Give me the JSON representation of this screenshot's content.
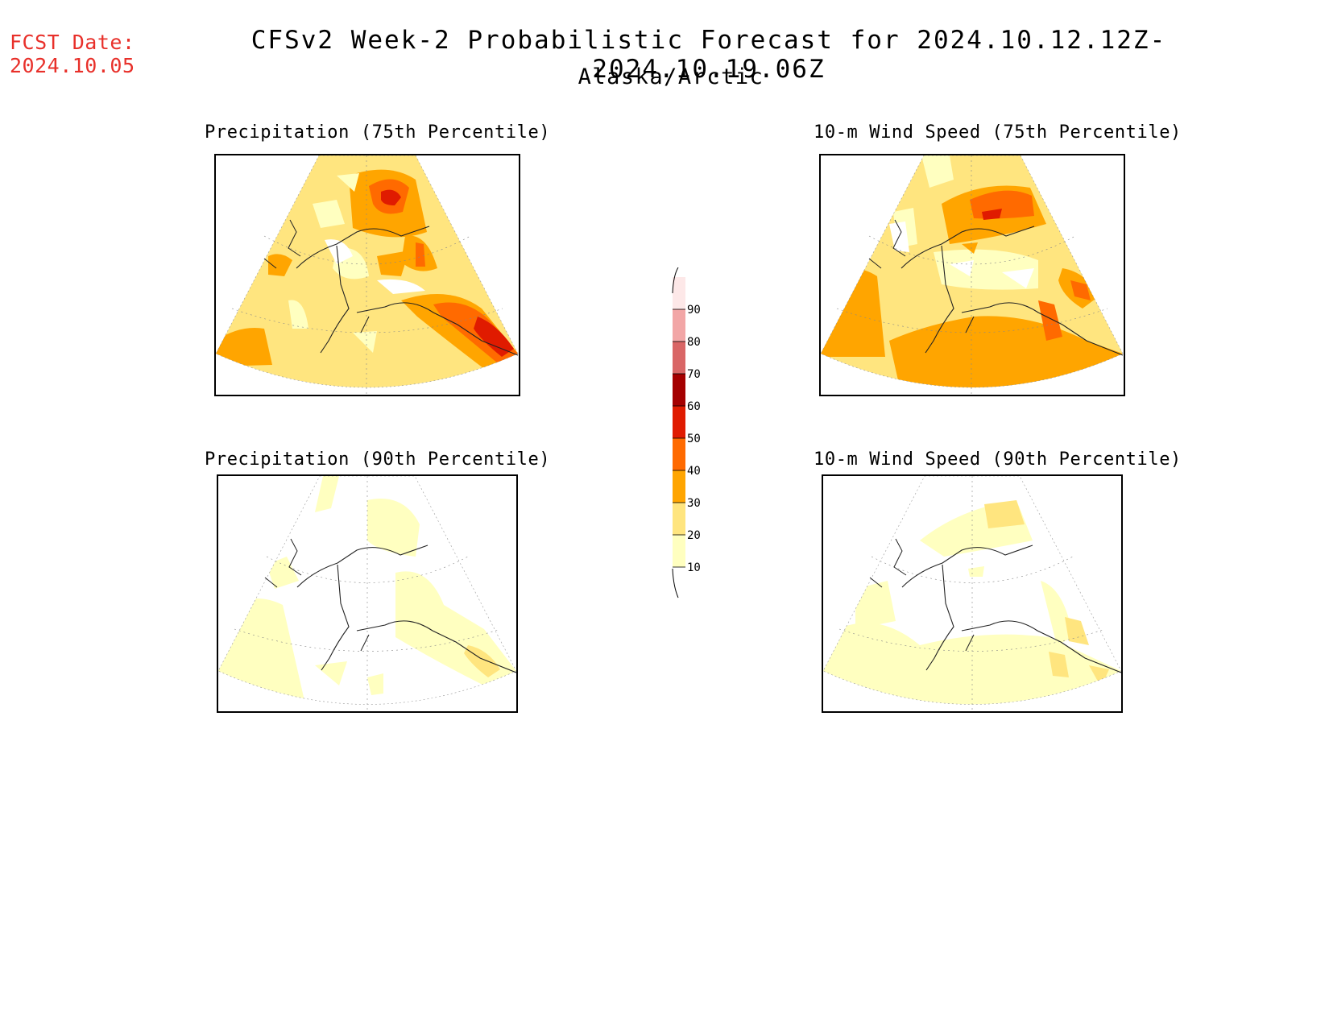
{
  "header": {
    "fcst_label": "FCST Date:",
    "fcst_date": "2024.10.05",
    "title": "CFSv2 Week-2 Probabilistic Forecast for 2024.10.12.12Z-2024.10.19.06Z",
    "subtitle": "Alaska/Arctic"
  },
  "panels": [
    {
      "id": "precip-75",
      "title": "Precipitation (75th Percentile)"
    },
    {
      "id": "wind-75",
      "title": "10-m Wind Speed (75th Percentile)"
    },
    {
      "id": "precip-90",
      "title": "Precipitation (90th Percentile)"
    },
    {
      "id": "wind-90",
      "title": "10-m Wind Speed (90th Percentile)"
    }
  ],
  "colorbar": {
    "levels": [
      "10",
      "20",
      "30",
      "40",
      "50",
      "60",
      "70",
      "80",
      "90"
    ],
    "colors": [
      "#ffffc0",
      "#ffe57f",
      "#ffa500",
      "#ff6a00",
      "#e01b00",
      "#a50000",
      "#d96666",
      "#f2a6a6",
      "#fde8e8"
    ]
  },
  "chart_data": {
    "type": "heatmap",
    "title": "CFSv2 Week-2 Probabilistic Forecast for 2024.10.12.12Z-2024.10.19.06Z",
    "subtitle": "Alaska/Arctic",
    "legend": "center",
    "color_scale": {
      "levels": [
        10,
        20,
        30,
        40,
        50,
        60,
        70,
        80,
        90
      ],
      "colors": [
        "#ffffc0",
        "#ffe57f",
        "#ffa500",
        "#ff6a00",
        "#e01b00",
        "#a50000",
        "#d96666",
        "#f2a6a6",
        "#fde8e8"
      ]
    },
    "maps": [
      {
        "title": "Precipitation (75th Percentile)",
        "dominant_range": [
          20,
          30
        ],
        "max_range": [
          50,
          60
        ]
      },
      {
        "title": "10-m Wind Speed (75th Percentile)",
        "dominant_range": [
          20,
          40
        ],
        "max_range": [
          40,
          50
        ]
      },
      {
        "title": "Precipitation (90th Percentile)",
        "dominant_range": [
          10,
          20
        ],
        "max_range": [
          20,
          30
        ]
      },
      {
        "title": "10-m Wind Speed (90th Percentile)",
        "dominant_range": [
          10,
          20
        ],
        "max_range": [
          20,
          30
        ]
      }
    ]
  }
}
